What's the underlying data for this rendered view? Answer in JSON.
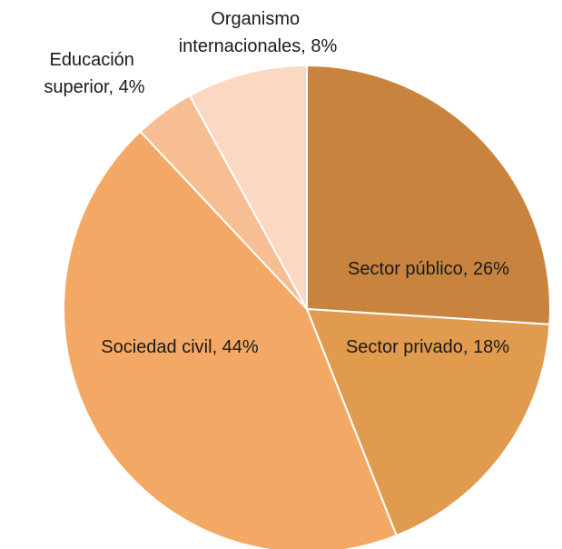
{
  "chart_data": {
    "type": "pie",
    "start": "top-clockwise",
    "slices": [
      {
        "label": "Sector público, 26%",
        "value": 26,
        "color": "#C8843F"
      },
      {
        "label": "Sector privado, 18%",
        "value": 18,
        "color": "#E19B4E"
      },
      {
        "label": "Sociedad civil, 44%",
        "value": 44,
        "color": "#F4A866"
      },
      {
        "label": "Educación superior, 4%",
        "value": 4,
        "color": "#F6BE92",
        "label_lines": [
          "Educación",
          "superior, 4%"
        ]
      },
      {
        "label": "Organismo internacionales, 8%",
        "value": 8,
        "color": "#FAD8C2",
        "label_lines": [
          "Organismo",
          "internacionales, 8%"
        ]
      }
    ]
  }
}
